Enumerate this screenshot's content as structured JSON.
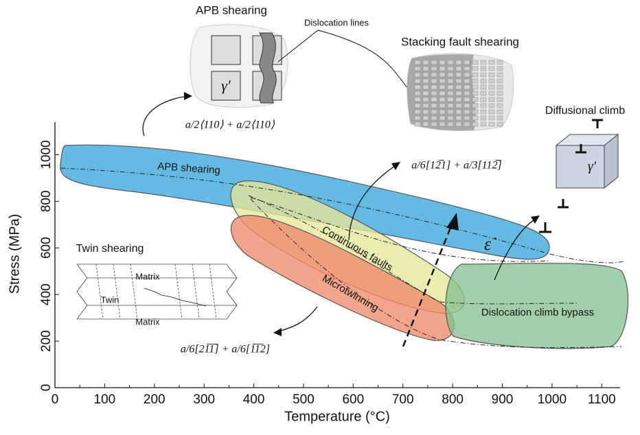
{
  "chart_data": {
    "type": "mechanism-map",
    "xlabel": "Temperature (°C)",
    "ylabel": "Stress (MPa)",
    "xlim": [
      0,
      1130
    ],
    "ylim": [
      0,
      1140
    ],
    "xticks": [
      0,
      100,
      200,
      300,
      400,
      500,
      600,
      700,
      800,
      900,
      1000,
      1100
    ],
    "yticks": [
      0,
      200,
      400,
      600,
      800,
      1000
    ],
    "regions": [
      {
        "name": "APB shearing",
        "color": "#3aa7dd"
      },
      {
        "name": "Continuous faults",
        "color": "#e6e79a"
      },
      {
        "name": "Microtwinning",
        "color": "#ee8a6c"
      },
      {
        "name": "Dislocation climb bypass",
        "color": "#86c291"
      }
    ],
    "strain_rate_label": "ε̇",
    "insets": {
      "apb": {
        "title": "APB shearing",
        "callout": "Dislocation lines",
        "phase": "γ′",
        "vector": "a/2⟨110⟩ + a/2⟨110⟩"
      },
      "stacking_fault": {
        "title": "Stacking fault shearing",
        "vector": "a/6[12̅1] + a/3[112̅]"
      },
      "climb": {
        "title": "Diffusional climb",
        "phase": "γ′"
      },
      "twin": {
        "title": "Twin shearing",
        "top": "Matrix",
        "middle": "Twin",
        "bottom": "Matrix",
        "vector": "a/6[21̅1̅] + a/6[1̅1̅2]"
      }
    }
  }
}
